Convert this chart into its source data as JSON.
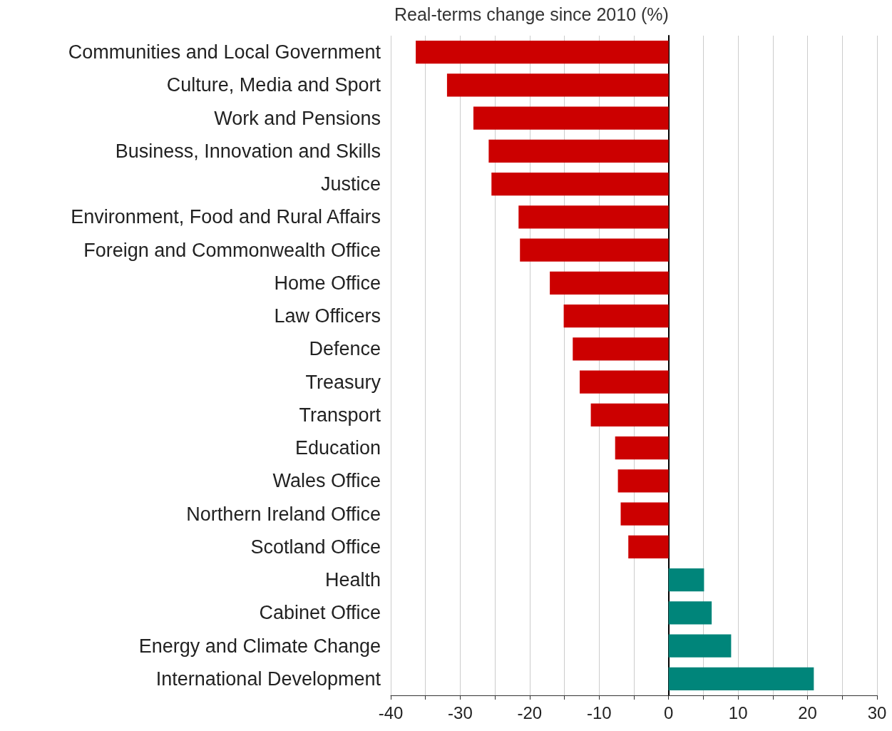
{
  "chart_data": {
    "type": "bar",
    "orientation": "horizontal",
    "title": "Real-terms change since 2010 (%)",
    "categories": [
      "Communities and Local Government",
      "Culture, Media and Sport",
      "Work and Pensions",
      "Business, Innovation and Skills",
      "Justice",
      "Environment, Food and Rural Affairs",
      "Foreign and Commonwealth Office",
      "Home Office",
      "Law Officers",
      "Defence",
      "Treasury",
      "Transport",
      "Education",
      "Wales Office",
      "Northern Ireland Office",
      "Scotland Office",
      "Health",
      "Cabinet Office",
      "Energy and Climate Change",
      "International Development"
    ],
    "values": [
      -36.4,
      -31.9,
      -28.1,
      -25.9,
      -25.5,
      -21.6,
      -21.4,
      -17.1,
      -15.1,
      -13.8,
      -12.8,
      -11.2,
      -7.7,
      -7.3,
      -6.9,
      -5.8,
      5.1,
      6.2,
      9.0,
      20.9
    ],
    "colors": [
      "#cc0000",
      "#cc0000",
      "#cc0000",
      "#cc0000",
      "#cc0000",
      "#cc0000",
      "#cc0000",
      "#cc0000",
      "#cc0000",
      "#cc0000",
      "#cc0000",
      "#cc0000",
      "#cc0000",
      "#cc0000",
      "#cc0000",
      "#cc0000",
      "#00857a",
      "#00857a",
      "#00857a",
      "#00857a"
    ],
    "xlim": [
      -40,
      30
    ],
    "xticks": [
      -40,
      -30,
      -20,
      -10,
      0,
      10,
      20,
      30
    ],
    "grid": "x"
  }
}
